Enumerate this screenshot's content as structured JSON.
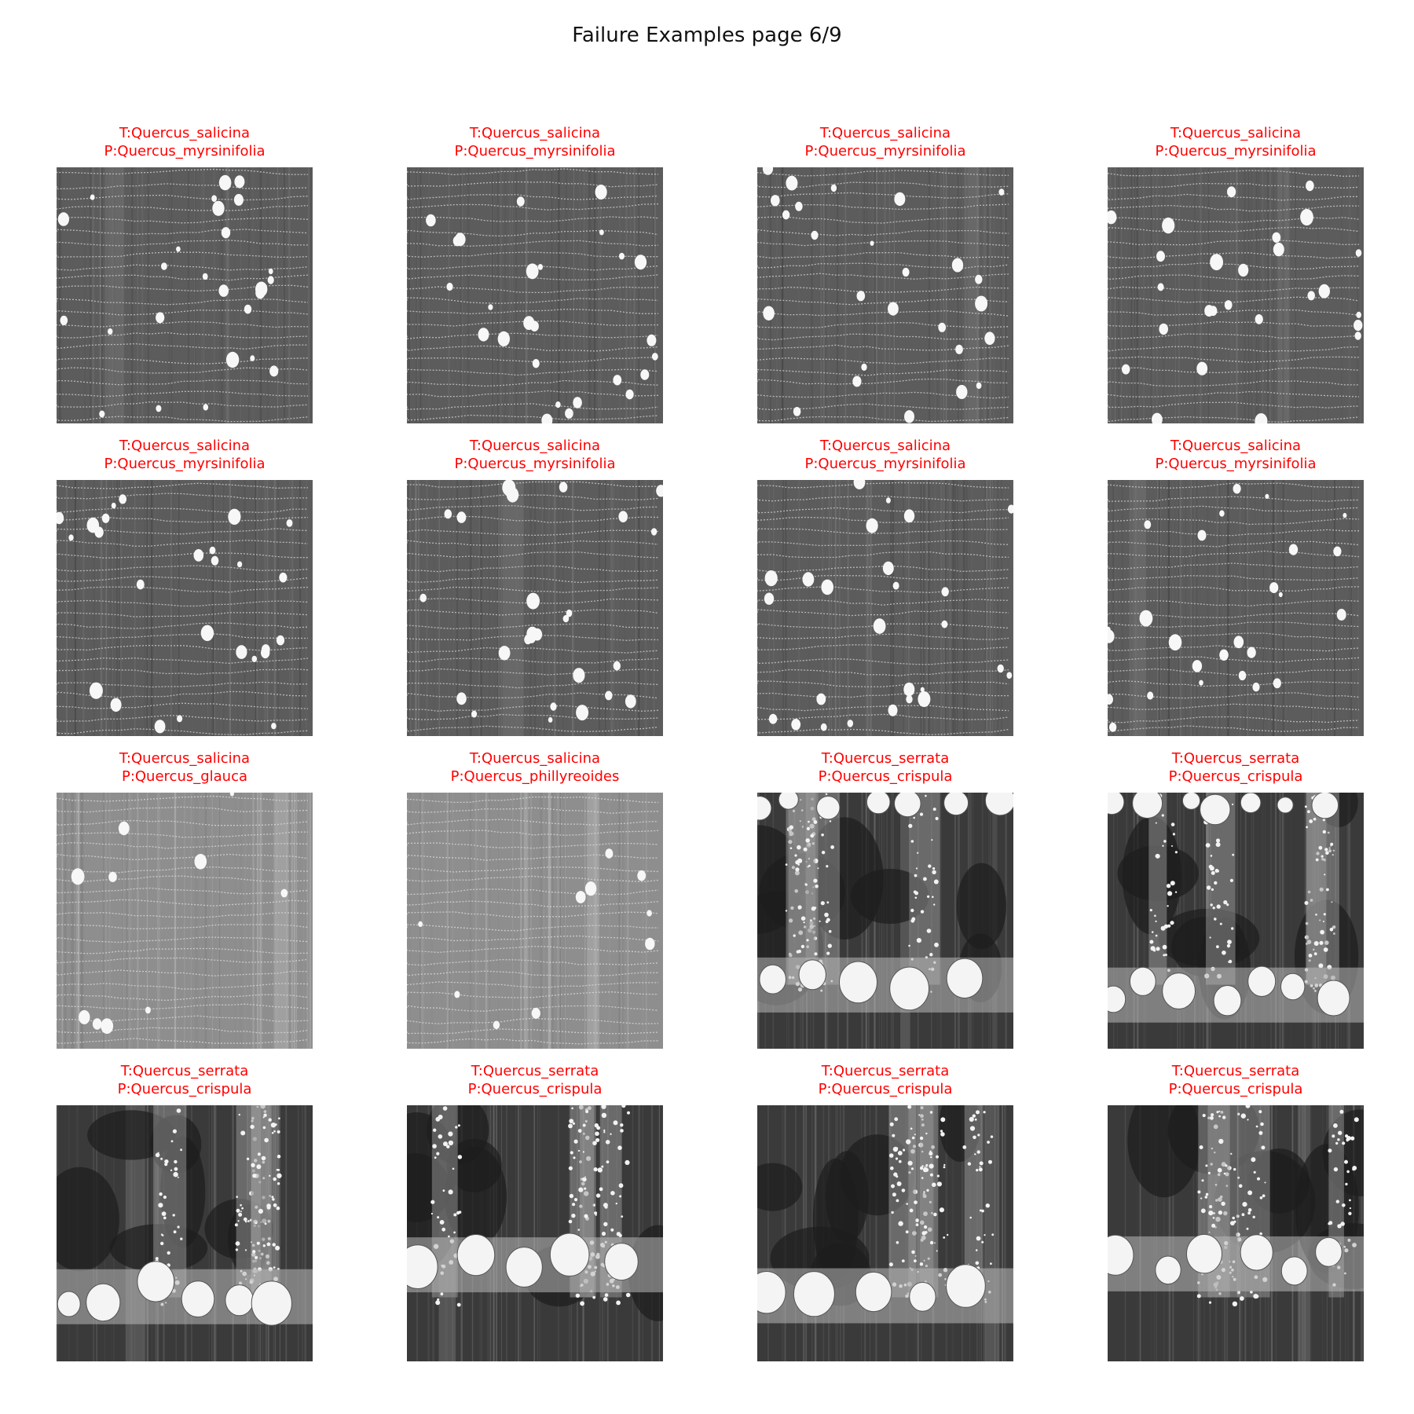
{
  "title": "Failure Examples page 6/9",
  "colors": {
    "caption_text": "#ff0000",
    "title_text": "#111111",
    "background": "#ffffff"
  },
  "grid": {
    "rows": 4,
    "cols": 4
  },
  "examples": [
    {
      "true_label": "T:Quercus_salicina",
      "pred_label": "P:Quercus_myrsinifolia",
      "texture": "diffuse"
    },
    {
      "true_label": "T:Quercus_salicina",
      "pred_label": "P:Quercus_myrsinifolia",
      "texture": "diffuse"
    },
    {
      "true_label": "T:Quercus_salicina",
      "pred_label": "P:Quercus_myrsinifolia",
      "texture": "diffuse"
    },
    {
      "true_label": "T:Quercus_salicina",
      "pred_label": "P:Quercus_myrsinifolia",
      "texture": "diffuse"
    },
    {
      "true_label": "T:Quercus_salicina",
      "pred_label": "P:Quercus_myrsinifolia",
      "texture": "diffuse"
    },
    {
      "true_label": "T:Quercus_salicina",
      "pred_label": "P:Quercus_myrsinifolia",
      "texture": "diffuse"
    },
    {
      "true_label": "T:Quercus_salicina",
      "pred_label": "P:Quercus_myrsinifolia",
      "texture": "diffuse"
    },
    {
      "true_label": "T:Quercus_salicina",
      "pred_label": "P:Quercus_myrsinifolia",
      "texture": "diffuse"
    },
    {
      "true_label": "T:Quercus_salicina",
      "pred_label": "P:Quercus_glauca",
      "texture": "light"
    },
    {
      "true_label": "T:Quercus_salicina",
      "pred_label": "P:Quercus_phillyreoides",
      "texture": "light"
    },
    {
      "true_label": "T:Quercus_serrata",
      "pred_label": "P:Quercus_crispula",
      "texture": "ring"
    },
    {
      "true_label": "T:Quercus_serrata",
      "pred_label": "P:Quercus_crispula",
      "texture": "ring"
    },
    {
      "true_label": "T:Quercus_serrata",
      "pred_label": "P:Quercus_crispula",
      "texture": "ring"
    },
    {
      "true_label": "T:Quercus_serrata",
      "pred_label": "P:Quercus_crispula",
      "texture": "ring"
    },
    {
      "true_label": "T:Quercus_serrata",
      "pred_label": "P:Quercus_crispula",
      "texture": "ring"
    },
    {
      "true_label": "T:Quercus_serrata",
      "pred_label": "P:Quercus_crispula",
      "texture": "ring"
    }
  ]
}
